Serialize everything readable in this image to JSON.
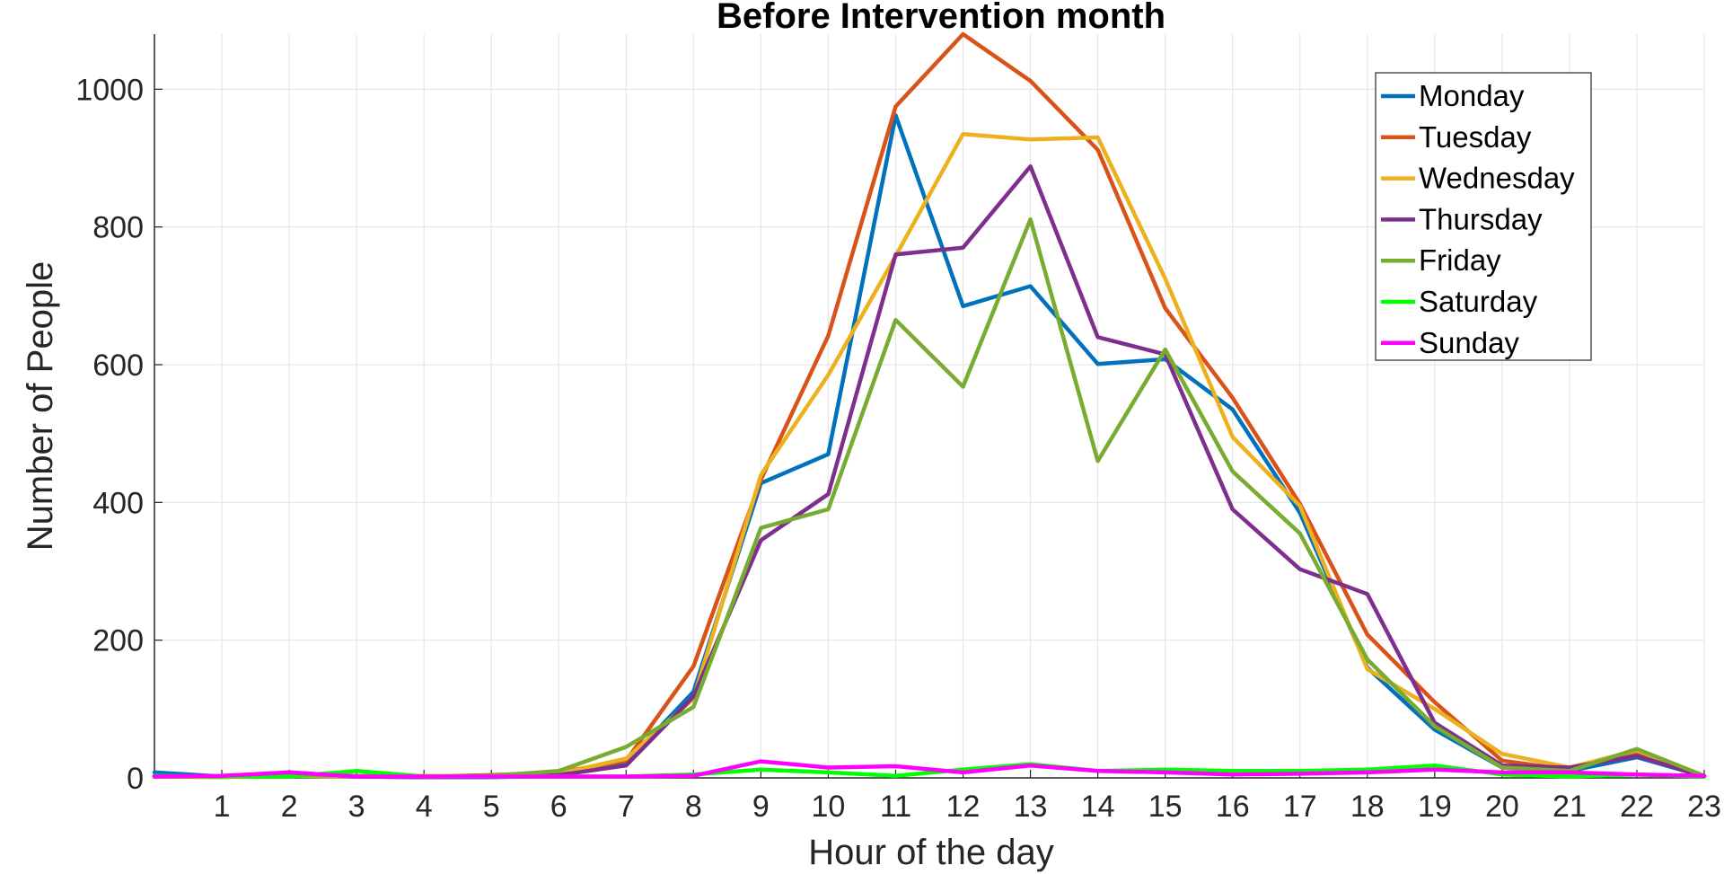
{
  "chart_data": {
    "type": "line",
    "title": "Before Intervention month",
    "xlabel": "Hour of the day",
    "ylabel": "Number of People",
    "x": [
      0,
      1,
      2,
      3,
      4,
      5,
      6,
      7,
      8,
      9,
      10,
      11,
      12,
      13,
      14,
      15,
      16,
      17,
      18,
      19,
      20,
      21,
      22,
      23
    ],
    "xticks": [
      1,
      2,
      3,
      4,
      5,
      6,
      7,
      8,
      9,
      10,
      11,
      12,
      13,
      14,
      15,
      16,
      17,
      18,
      19,
      20,
      21,
      22,
      23
    ],
    "yticks": [
      0,
      200,
      400,
      600,
      800,
      1000
    ],
    "xlim": [
      0,
      23
    ],
    "ylim": [
      0,
      1080
    ],
    "grid": true,
    "legend_position": "top-right",
    "series": [
      {
        "name": "Monday",
        "color": "#0072BD",
        "values": [
          8,
          2,
          3,
          2,
          1,
          1,
          3,
          22,
          125,
          428,
          470,
          962,
          685,
          714,
          601,
          608,
          535,
          385,
          160,
          70,
          15,
          10,
          30,
          2
        ]
      },
      {
        "name": "Tuesday",
        "color": "#D95319",
        "values": [
          2,
          2,
          5,
          3,
          2,
          4,
          8,
          25,
          162,
          433,
          642,
          975,
          1080,
          1012,
          912,
          682,
          552,
          398,
          208,
          110,
          25,
          12,
          38,
          3
        ]
      },
      {
        "name": "Wednesday",
        "color": "#EDB120",
        "values": [
          2,
          1,
          3,
          2,
          3,
          2,
          6,
          28,
          115,
          440,
          585,
          758,
          935,
          927,
          930,
          725,
          495,
          395,
          158,
          100,
          35,
          15,
          40,
          2
        ]
      },
      {
        "name": "Thursday",
        "color": "#7E2F8E",
        "values": [
          3,
          2,
          8,
          2,
          1,
          2,
          4,
          18,
          118,
          345,
          412,
          760,
          770,
          888,
          640,
          615,
          390,
          303,
          267,
          80,
          18,
          15,
          32,
          2
        ]
      },
      {
        "name": "Friday",
        "color": "#77AC30",
        "values": [
          2,
          2,
          4,
          3,
          2,
          3,
          10,
          45,
          103,
          363,
          390,
          665,
          568,
          811,
          460,
          622,
          445,
          355,
          172,
          75,
          15,
          10,
          42,
          3
        ]
      },
      {
        "name": "Saturday",
        "color": "#00FF00",
        "values": [
          3,
          2,
          2,
          10,
          2,
          2,
          2,
          2,
          5,
          12,
          8,
          3,
          12,
          20,
          10,
          12,
          10,
          10,
          12,
          18,
          5,
          2,
          5,
          2
        ]
      },
      {
        "name": "Sunday",
        "color": "#FF00FF",
        "values": [
          2,
          3,
          8,
          2,
          2,
          2,
          2,
          2,
          3,
          24,
          15,
          17,
          8,
          18,
          10,
          8,
          5,
          6,
          8,
          12,
          8,
          8,
          5,
          3
        ]
      }
    ]
  }
}
